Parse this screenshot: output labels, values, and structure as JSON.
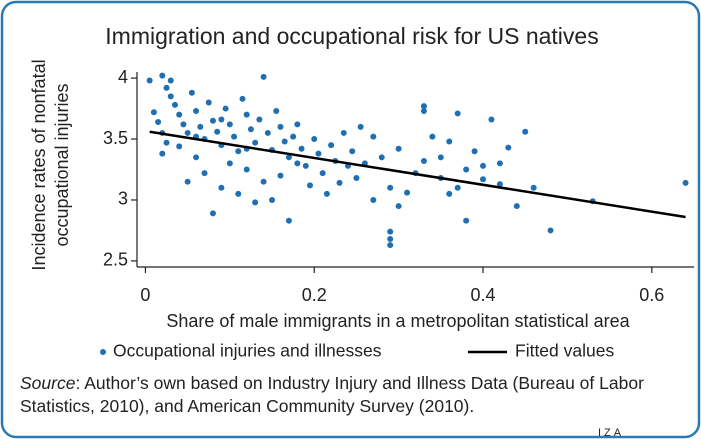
{
  "chart_data": {
    "type": "scatter",
    "title": "Immigration and occupational risk for US natives",
    "xlabel": "Share of male immigrants in a metropolitan statistical area",
    "ylabel_lines": [
      "Incidence rates of nonfatal",
      "occupational injuries"
    ],
    "xlim": [
      -0.01,
      0.65
    ],
    "ylim": [
      2.45,
      4.05
    ],
    "xticks": [
      0,
      0.2,
      0.4,
      0.6
    ],
    "yticks": [
      2.5,
      3,
      3.5,
      4
    ],
    "series": [
      {
        "name": "Occupational injuries and illnesses",
        "type": "scatter",
        "color": "#1f6fb2",
        "x": [
          0.005,
          0.02,
          0.03,
          0.025,
          0.03,
          0.01,
          0.015,
          0.02,
          0.025,
          0.035,
          0.04,
          0.045,
          0.05,
          0.04,
          0.055,
          0.06,
          0.065,
          0.07,
          0.06,
          0.075,
          0.08,
          0.085,
          0.09,
          0.07,
          0.095,
          0.1,
          0.105,
          0.11,
          0.1,
          0.08,
          0.115,
          0.12,
          0.125,
          0.13,
          0.12,
          0.135,
          0.14,
          0.145,
          0.15,
          0.14,
          0.155,
          0.16,
          0.165,
          0.17,
          0.16,
          0.17,
          0.175,
          0.18,
          0.185,
          0.19,
          0.195,
          0.2,
          0.205,
          0.21,
          0.215,
          0.22,
          0.225,
          0.23,
          0.235,
          0.24,
          0.245,
          0.25,
          0.255,
          0.26,
          0.27,
          0.28,
          0.29,
          0.29,
          0.29,
          0.29,
          0.3,
          0.31,
          0.32,
          0.33,
          0.33,
          0.33,
          0.34,
          0.35,
          0.36,
          0.37,
          0.37,
          0.38,
          0.38,
          0.39,
          0.4,
          0.41,
          0.42,
          0.43,
          0.44,
          0.45,
          0.46,
          0.48,
          0.53,
          0.64,
          0.05,
          0.09,
          0.11,
          0.13,
          0.15,
          0.27,
          0.3,
          0.35,
          0.36,
          0.4,
          0.42,
          0.02,
          0.06,
          0.09,
          0.12,
          0.18
        ],
        "values": [
          3.98,
          4.02,
          3.98,
          3.92,
          3.85,
          3.72,
          3.64,
          3.55,
          3.47,
          3.78,
          3.7,
          3.62,
          3.55,
          3.44,
          3.88,
          3.73,
          3.6,
          3.5,
          3.35,
          3.8,
          3.65,
          3.56,
          3.45,
          3.22,
          3.75,
          3.62,
          3.52,
          3.4,
          3.3,
          2.89,
          3.83,
          3.7,
          3.58,
          3.47,
          3.25,
          3.66,
          4.01,
          3.55,
          3.41,
          3.15,
          3.73,
          3.6,
          3.48,
          3.35,
          3.2,
          2.83,
          3.52,
          3.62,
          3.42,
          3.28,
          3.12,
          3.5,
          3.38,
          3.22,
          3.05,
          3.45,
          3.32,
          3.14,
          3.55,
          3.28,
          3.4,
          3.18,
          3.6,
          3.3,
          3.52,
          3.35,
          3.1,
          2.63,
          2.68,
          2.74,
          3.42,
          3.06,
          3.22,
          3.77,
          3.73,
          3.32,
          3.52,
          3.18,
          3.48,
          3.71,
          3.1,
          2.83,
          3.25,
          3.4,
          3.17,
          3.66,
          3.13,
          3.43,
          2.95,
          3.56,
          3.1,
          2.75,
          2.99,
          3.14,
          3.15,
          3.1,
          3.05,
          2.98,
          3.0,
          3.0,
          2.95,
          3.35,
          3.05,
          3.28,
          3.3,
          3.38,
          3.52,
          3.66,
          3.42,
          3.3
        ]
      },
      {
        "name": "Fitted values",
        "type": "line",
        "color": "#000000",
        "x": [
          0.005,
          0.64
        ],
        "values": [
          3.56,
          2.86
        ]
      }
    ],
    "source_label": "Source",
    "source_text": ": Author’s own based on Industry Injury and Illness Data (Bureau of Labor Statistics, 2010), and American Community Survey (2010).",
    "logo": "IZA"
  }
}
